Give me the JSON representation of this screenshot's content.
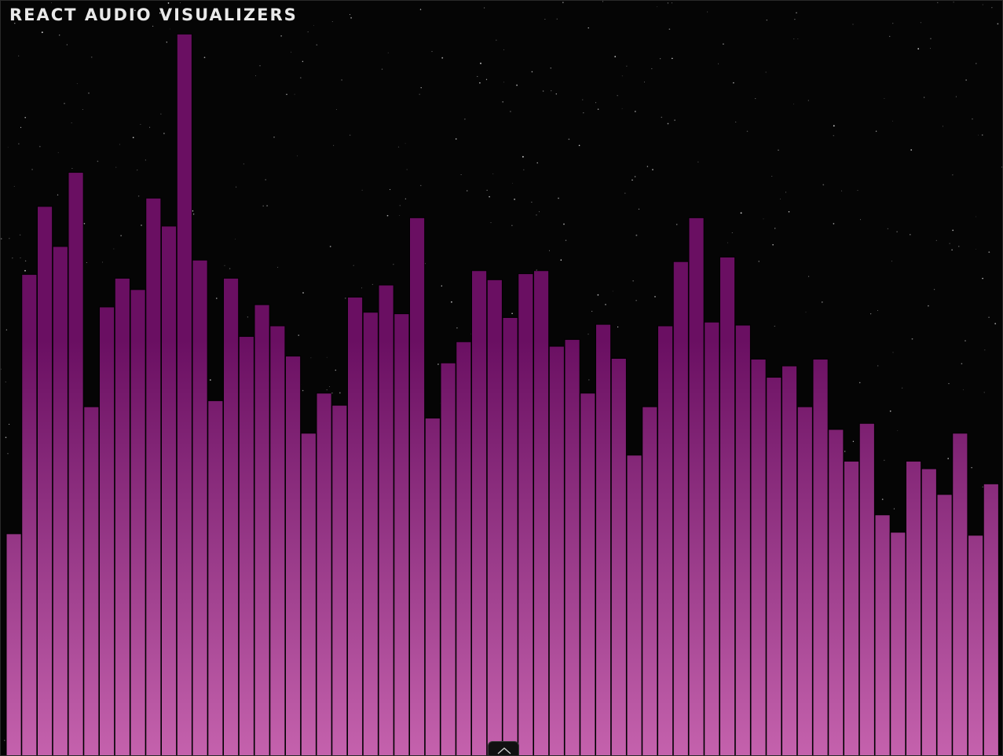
{
  "app": {
    "title": "REACT AUDIO VISUALIZERS"
  },
  "colors": {
    "background": "#000000",
    "bar_top": "#6a0f62",
    "bar_bottom": "#c562ad",
    "bar_outline": "#000000",
    "star": "#ffffff",
    "title": "#e9e9e9"
  },
  "controls": {
    "panel_toggle_icon": "chevron-up-icon"
  },
  "chart_data": {
    "type": "bar",
    "series": [
      {
        "values": [
          0.294,
          0.637,
          0.727,
          0.674,
          0.772,
          0.462,
          0.594,
          0.632,
          0.617,
          0.738,
          0.701,
          0.955,
          0.656,
          0.47,
          0.632,
          0.555,
          0.597,
          0.569,
          0.529,
          0.427,
          0.48,
          0.464,
          0.607,
          0.587,
          0.623,
          0.585,
          0.712,
          0.447,
          0.52,
          0.548,
          0.642,
          0.63,
          0.58,
          0.638,
          0.642,
          0.542,
          0.551,
          0.48,
          0.571,
          0.526,
          0.398,
          0.462,
          0.569,
          0.654,
          0.712,
          0.574,
          0.66,
          0.57,
          0.525,
          0.501,
          0.516,
          0.462,
          0.525,
          0.432,
          0.39,
          0.44,
          0.319,
          0.296,
          0.39,
          0.38,
          0.346,
          0.427,
          0.292,
          0.36
        ]
      }
    ]
  }
}
